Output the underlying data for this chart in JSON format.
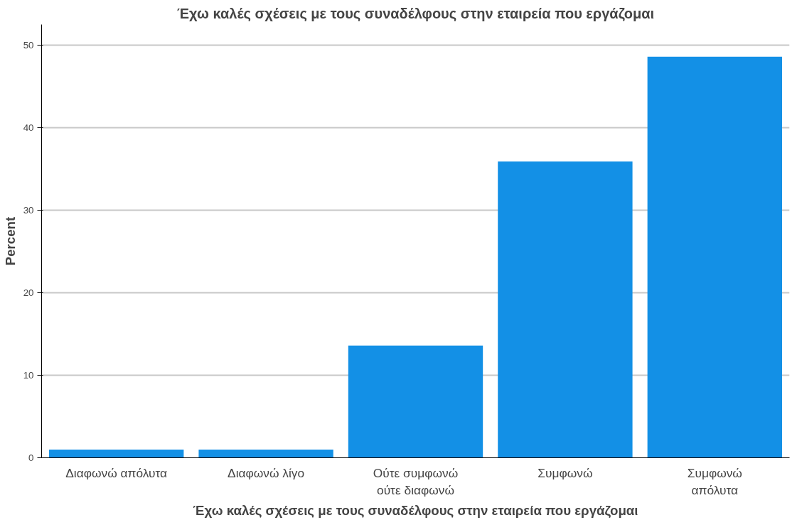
{
  "chart_data": {
    "type": "bar",
    "title": "Έχω καλές σχέσεις με τους συναδέλφους στην εταιρεία που εργάζομαι",
    "xlabel": "Έχω καλές σχέσεις με τους συναδέλφους στην εταιρεία που εργάζομαι",
    "ylabel": "Percent",
    "categories": [
      "Διαφωνώ απόλυτα",
      "Διαφωνώ λίγο",
      "Ούτε συμφωνώ\nούτε διαφωνώ",
      "Συμφωνώ",
      "Συμφωνώ\nαπόλυτα"
    ],
    "values": [
      1.0,
      1.0,
      13.6,
      35.9,
      48.6
    ],
    "color": "#1390e6",
    "ylim": [
      0,
      52.5
    ],
    "yticks": [
      0,
      10,
      20,
      30,
      40,
      50
    ],
    "grid": "y"
  }
}
